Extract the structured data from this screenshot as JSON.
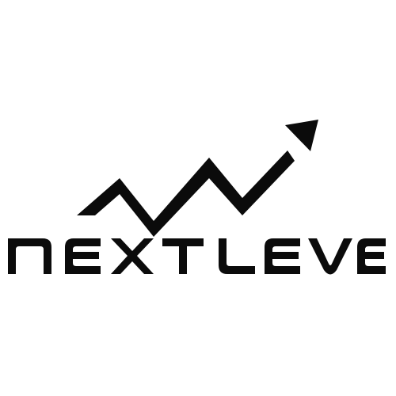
{
  "logo": {
    "wordmark": "NEXT LEVEL",
    "ink_color": "#0b0b0b",
    "background_color": "#ffffff",
    "icon": "rising-zigzag-arrow-icon"
  }
}
